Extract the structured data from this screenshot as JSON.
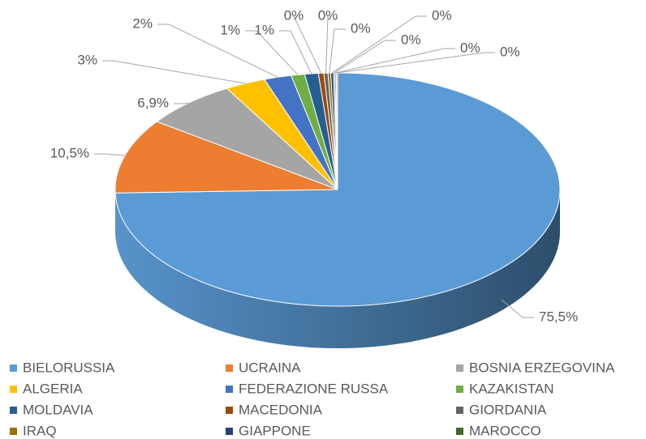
{
  "chart_data": {
    "type": "pie3d",
    "categories": [
      "BIELORUSSIA",
      "UCRAINA",
      "BOSNIA ERZEGOVINA",
      "ALGERIA",
      "FEDERAZIONE RUSSA",
      "KAZAKISTAN",
      "MOLDAVIA",
      "MACEDONIA",
      "GIORDANIA",
      "IRAQ",
      "GIAPPONE",
      "MAROCCO",
      null,
      null
    ],
    "values": [
      75.5,
      10.5,
      6.9,
      3,
      2,
      1,
      1,
      0.4,
      0.3,
      0.2,
      0.2,
      0.1,
      0.1,
      0.1
    ],
    "value_labels": [
      "75,5%",
      "10,5%",
      "6,9%",
      "3%",
      "2%",
      "1%",
      "1%",
      "0%",
      "0%",
      "0%",
      "0%",
      "0%",
      "0%",
      "0%"
    ],
    "colors": [
      "#5b9bd5",
      "#ed7d31",
      "#a5a5a5",
      "#ffc000",
      "#4472c4",
      "#70ad47",
      "#255e91",
      "#9e480e",
      "#636363",
      "#997300",
      "#264478",
      "#43682b",
      "#698ed0",
      "#f1975a"
    ],
    "legend": "bottom"
  }
}
